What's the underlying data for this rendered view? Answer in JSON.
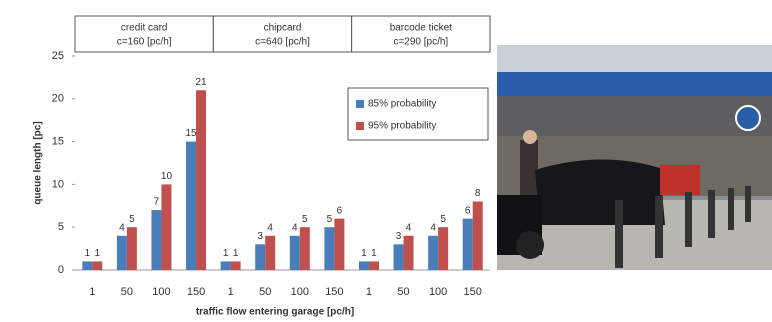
{
  "chart_data": {
    "type": "bar",
    "groups": [
      {
        "name": "credit card",
        "capacity": "c=160 [pc/h]"
      },
      {
        "name": "chipcard",
        "capacity": "c=640 [pc/h]"
      },
      {
        "name": "barcode ticket",
        "capacity": "c=290 [pc/h]"
      }
    ],
    "y_label": "queue length [pc]",
    "x_label": "traffic flow entering garage [pc/h]",
    "categories": [
      "1",
      "50",
      "100",
      "150",
      "1",
      "50",
      "100",
      "150",
      "1",
      "50",
      "100",
      "150"
    ],
    "series": [
      {
        "name": "85% probability",
        "color": "#4a7ebb",
        "values": [
          1,
          4,
          7,
          15,
          1,
          3,
          4,
          5,
          1,
          3,
          4,
          6
        ]
      },
      {
        "name": "95% probability",
        "color": "#c0504d",
        "values": [
          1,
          5,
          10,
          21,
          1,
          4,
          5,
          6,
          1,
          4,
          5,
          8
        ]
      }
    ],
    "ylim": [
      0,
      25
    ],
    "yticks": [
      0,
      5,
      10,
      15,
      20,
      25
    ],
    "legend": "upper-right"
  }
}
